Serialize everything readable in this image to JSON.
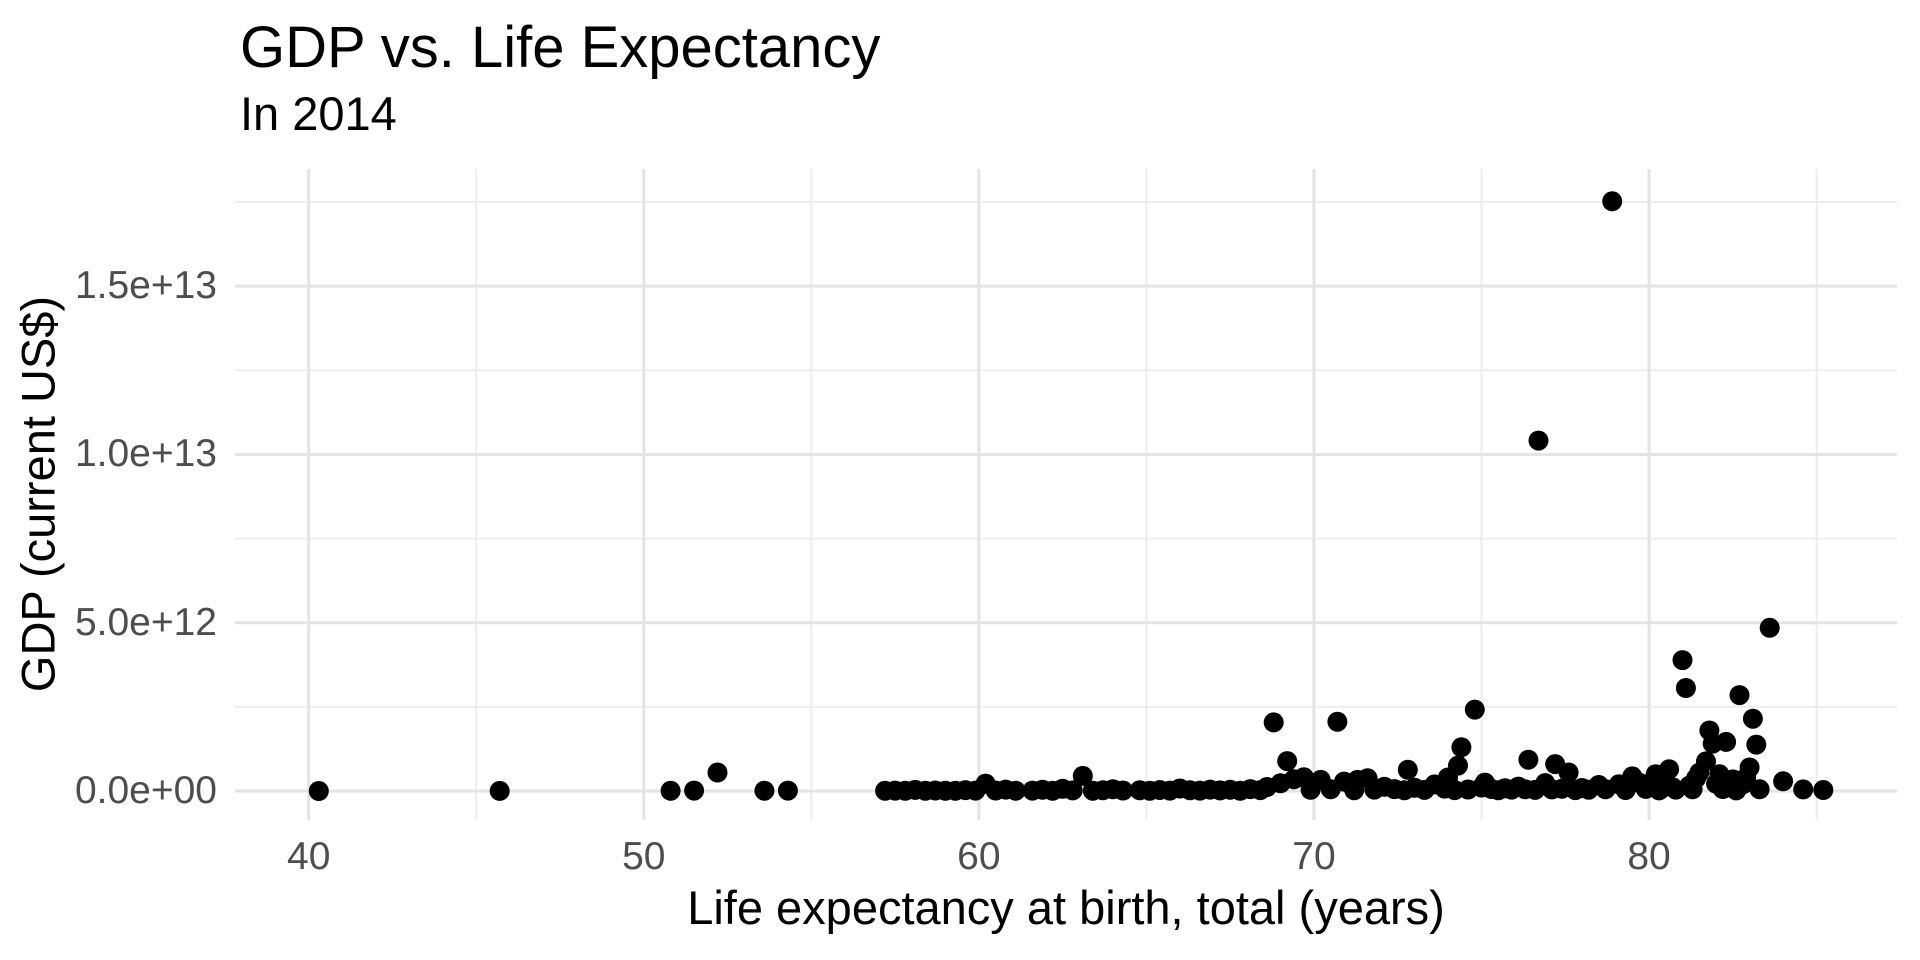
{
  "chart_data": {
    "type": "scatter",
    "title": "GDP vs. Life Expectancy",
    "subtitle": "In 2014",
    "xlabel": "Life expectancy at birth, total (years)",
    "ylabel": "GDP (current US$)",
    "xlim": [
      37.8,
      87.4
    ],
    "ylim": [
      -860000000000,
      18480000000000
    ],
    "grid": true,
    "legend": "none",
    "x_ticks": [
      {
        "value": 40,
        "label": "40"
      },
      {
        "value": 50,
        "label": "50"
      },
      {
        "value": 60,
        "label": "60"
      },
      {
        "value": 70,
        "label": "70"
      },
      {
        "value": 80,
        "label": "80"
      }
    ],
    "y_ticks": [
      {
        "value": 0,
        "label": "0.0e+00"
      },
      {
        "value": 5000000000000,
        "label": "5.0e+12"
      },
      {
        "value": 10000000000000,
        "label": "1.0e+13"
      },
      {
        "value": 15000000000000,
        "label": "1.5e+13"
      }
    ],
    "x_minor": [
      45,
      55,
      65,
      75,
      85
    ],
    "y_minor": [
      2500000000000,
      7500000000000,
      12500000000000,
      17500000000000
    ],
    "style": {
      "point_color": "#000000",
      "point_radius": 10,
      "grid_major_color": "#e4e4e4",
      "grid_minor_color": "#ededed",
      "tick_label_color": "#4d4d4d",
      "panel_background": "#ffffff"
    },
    "points": [
      [
        40.3,
        1400000000.0
      ],
      [
        45.7,
        3100000000.0
      ],
      [
        50.8,
        8000000000.0
      ],
      [
        51.5,
        13000000000.0
      ],
      [
        52.2,
        550000000000.0
      ],
      [
        53.6,
        9000000000.0
      ],
      [
        54.3,
        14000000000.0
      ],
      [
        57.2,
        6000000000.0
      ],
      [
        57.5,
        12000000000.0
      ],
      [
        57.8,
        8000000000.0
      ],
      [
        58.1,
        34000000000.0
      ],
      [
        58.4,
        9000000000.0
      ],
      [
        58.7,
        16000000000.0
      ],
      [
        59.0,
        11000000000.0
      ],
      [
        59.3,
        7000000000.0
      ],
      [
        59.6,
        27000000000.0
      ],
      [
        59.9,
        13000000000.0
      ],
      [
        60.2,
        220000000000.0
      ],
      [
        60.5,
        17000000000.0
      ],
      [
        60.8,
        43000000000.0
      ],
      [
        61.1,
        9000000000.0
      ],
      [
        61.6,
        12000000000.0
      ],
      [
        61.9,
        38000000000.0
      ],
      [
        62.2,
        8000000000.0
      ],
      [
        62.5,
        66000000000.0
      ],
      [
        62.8,
        19000000000.0
      ],
      [
        63.1,
        450000000000.0
      ],
      [
        63.4,
        11000000000.0
      ],
      [
        63.7,
        24000000000.0
      ],
      [
        64.0,
        55000000000.0
      ],
      [
        64.3,
        16000000000.0
      ],
      [
        64.8,
        21000000000.0
      ],
      [
        65.1,
        9000000000.0
      ],
      [
        65.4,
        32000000000.0
      ],
      [
        65.7,
        14000000000.0
      ],
      [
        66.0,
        77000000000.0
      ],
      [
        66.3,
        26000000000.0
      ],
      [
        66.6,
        12000000000.0
      ],
      [
        66.9,
        44000000000.0
      ],
      [
        67.2,
        19000000000.0
      ],
      [
        67.5,
        37000000000.0
      ],
      [
        67.8,
        8000000000.0
      ],
      [
        68.1,
        58000000000.0
      ],
      [
        68.4,
        29000000000.0
      ],
      [
        68.6,
        120000000000.0
      ],
      [
        68.8,
        2040000000000.0
      ],
      [
        69.0,
        230000000000.0
      ],
      [
        69.2,
        890000000000.0
      ],
      [
        69.4,
        350000000000.0
      ],
      [
        69.7,
        410000000000.0
      ],
      [
        69.9,
        36000000000.0
      ],
      [
        70.2,
        330000000000.0
      ],
      [
        70.5,
        54000000000.0
      ],
      [
        70.7,
        2060000000000.0
      ],
      [
        70.9,
        280000000000.0
      ],
      [
        71.2,
        24000000000.0
      ],
      [
        71.3,
        330000000000.0
      ],
      [
        71.6,
        380000000000.0
      ],
      [
        71.8,
        43000000000.0
      ],
      [
        72.1,
        130000000000.0
      ],
      [
        72.4,
        57000000000.0
      ],
      [
        72.7,
        21000000000.0
      ],
      [
        72.8,
        630000000000.0
      ],
      [
        73.0,
        96000000000.0
      ],
      [
        73.3,
        35000000000.0
      ],
      [
        73.6,
        198000000000.0
      ],
      [
        73.9,
        74000000000.0
      ],
      [
        74.0,
        404000000000.0
      ],
      [
        74.2,
        29000000000.0
      ],
      [
        74.3,
        756000000000.0
      ],
      [
        74.4,
        1300000000000.0
      ],
      [
        74.6,
        46000000000.0
      ],
      [
        74.8,
        2420000000000.0
      ],
      [
        75.0,
        105000000000.0
      ],
      [
        75.1,
        250000000000.0
      ],
      [
        75.3,
        62000000000.0
      ],
      [
        75.5,
        22000000000.0
      ],
      [
        75.7,
        83000000000.0
      ],
      [
        75.9,
        44000000000.0
      ],
      [
        76.1,
        131000000000.0
      ],
      [
        76.3,
        56000000000.0
      ],
      [
        76.4,
        930000000000.0
      ],
      [
        76.6,
        33000000000.0
      ],
      [
        76.7,
        10410000000000.0
      ],
      [
        76.9,
        235000000000.0
      ],
      [
        77.1,
        48000000000.0
      ],
      [
        77.2,
        800000000000.0
      ],
      [
        77.4,
        69000000000.0
      ],
      [
        77.6,
        550000000000.0
      ],
      [
        77.8,
        27000000000.0
      ],
      [
        78.0,
        92000000000.0
      ],
      [
        78.2,
        41000000000.0
      ],
      [
        78.5,
        180000000000.0
      ],
      [
        78.7,
        53000000000.0
      ],
      [
        78.9,
        17520000000000.0
      ],
      [
        79.1,
        200000000000.0
      ],
      [
        79.3,
        31000000000.0
      ],
      [
        79.5,
        435000000000.0
      ],
      [
        79.7,
        250000000000.0
      ],
      [
        79.9,
        64000000000.0
      ],
      [
        80.1,
        280000000000.0
      ],
      [
        80.2,
        500000000000.0
      ],
      [
        80.3,
        20000000000.0
      ],
      [
        80.4,
        95000000000.0
      ],
      [
        80.6,
        650000000000.0
      ],
      [
        80.7,
        110000000000.0
      ],
      [
        80.8,
        42000000000.0
      ],
      [
        81.0,
        3890000000000.0
      ],
      [
        81.1,
        3060000000000.0
      ],
      [
        81.2,
        160000000000.0
      ],
      [
        81.3,
        55000000000.0
      ],
      [
        81.4,
        375000000000.0
      ],
      [
        81.5,
        545000000000.0
      ],
      [
        81.7,
        880000000000.0
      ],
      [
        81.8,
        1800000000000.0
      ],
      [
        81.9,
        1410000000000.0
      ],
      [
        82.0,
        215000000000.0
      ],
      [
        82.1,
        499000000000.0
      ],
      [
        82.2,
        62000000000.0
      ],
      [
        82.3,
        1460000000000.0
      ],
      [
        82.4,
        135000000000.0
      ],
      [
        82.5,
        346000000000.0
      ],
      [
        82.6,
        18000000000.0
      ],
      [
        82.7,
        2850000000000.0
      ],
      [
        82.8,
        200000000000.0
      ],
      [
        82.9,
        400000000000.0
      ],
      [
        83.0,
        701000000000.0
      ],
      [
        83.1,
        2150000000000.0
      ],
      [
        83.2,
        1380000000000.0
      ],
      [
        83.3,
        53000000000.0
      ],
      [
        83.6,
        4850000000000.0
      ],
      [
        84.0,
        290000000000.0
      ],
      [
        84.6,
        50000000000.0
      ],
      [
        85.2,
        31000000000.0
      ]
    ]
  }
}
